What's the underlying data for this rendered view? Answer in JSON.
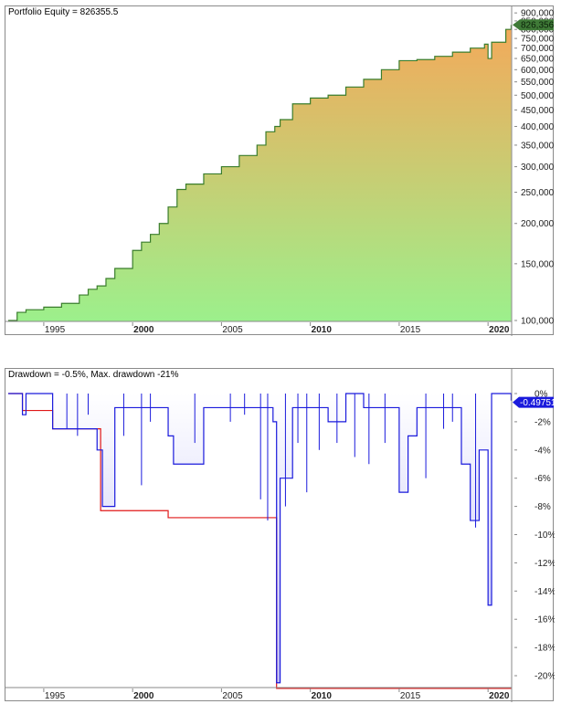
{
  "equity_pane": {
    "title": "Portfolio Equity = 826355.5",
    "current_value_label": "826,356",
    "line_color": "#3a7d2c",
    "fill_top_color": "#f4a95a",
    "fill_bottom_color": "#9cf08c",
    "value_badge_color": "#3f7a37"
  },
  "drawdown_pane": {
    "title": "Drawdown = -0.5%, Max. drawdown -21%",
    "current_value_label": "-0.49751",
    "line_color": "#1a1adc",
    "max_dd_line_color": "#e01818",
    "value_badge_color": "#1a1adc"
  },
  "x_axis": {
    "ticks": [
      {
        "label": "1995",
        "bold": false
      },
      {
        "label": "2000",
        "bold": true
      },
      {
        "label": "2005",
        "bold": false
      },
      {
        "label": "2010",
        "bold": true
      },
      {
        "label": "2015",
        "bold": false
      },
      {
        "label": "2020",
        "bold": true
      }
    ]
  },
  "chart_data": [
    {
      "type": "area",
      "title": "Portfolio Equity = 826355.5",
      "xlabel": "",
      "ylabel": "",
      "yscale": "log",
      "ylim": [
        100000,
        900000
      ],
      "y_ticks": [
        "100,000",
        "150,000",
        "200,000",
        "250,000",
        "300,000",
        "350,000",
        "400,000",
        "450,000",
        "500,000",
        "550,000",
        "600,000",
        "650,000",
        "700,000",
        "750,000",
        "800,000",
        "850,000",
        "900,000"
      ],
      "x_ticks": [
        "1995",
        "2000",
        "2005",
        "2010",
        "2015",
        "2020"
      ],
      "x": [
        1993.0,
        1993.5,
        1994.0,
        1995.0,
        1996.0,
        1997.0,
        1997.5,
        1998.0,
        1998.5,
        1999.0,
        2000.0,
        2000.5,
        2001.0,
        2001.5,
        2002.0,
        2002.5,
        2003.0,
        2004.0,
        2005.0,
        2006.0,
        2007.0,
        2007.5,
        2008.0,
        2008.3,
        2009.0,
        2010.0,
        2011.0,
        2012.0,
        2013.0,
        2014.0,
        2015.0,
        2016.0,
        2017.0,
        2018.0,
        2019.0,
        2019.8,
        2020.0,
        2020.2,
        2021.0,
        2021.3
      ],
      "values": [
        100000,
        106000,
        108000,
        110000,
        113000,
        120000,
        125000,
        128000,
        135000,
        145000,
        165000,
        175000,
        185000,
        200000,
        225000,
        255000,
        265000,
        285000,
        300000,
        325000,
        350000,
        385000,
        400000,
        420000,
        470000,
        490000,
        500000,
        530000,
        560000,
        600000,
        640000,
        645000,
        660000,
        680000,
        700000,
        720000,
        650000,
        730000,
        800000,
        826356
      ],
      "last_value": 826355.5
    },
    {
      "type": "line",
      "title": "Drawdown = -0.5%, Max. drawdown -21%",
      "xlabel": "",
      "ylabel": "",
      "ylim": [
        -21,
        0
      ],
      "y_ticks": [
        "0%",
        "-2%",
        "-4%",
        "-6%",
        "-8%",
        "-10%",
        "-12%",
        "-14%",
        "-16%",
        "-18%",
        "-20%"
      ],
      "x_ticks": [
        "1995",
        "2000",
        "2005",
        "2010",
        "2015",
        "2020"
      ],
      "series": [
        {
          "name": "Drawdown",
          "x": [
            1993.0,
            1993.8,
            1994.0,
            1995.5,
            1998.0,
            1998.3,
            1999.0,
            2002.0,
            2002.3,
            2004.0,
            2007.9,
            2008.1,
            2008.3,
            2009.0,
            2011.0,
            2012.0,
            2013.0,
            2014.5,
            2015.0,
            2015.5,
            2016.0,
            2018.5,
            2019.0,
            2019.5,
            2020.0,
            2020.2,
            2021.0,
            2021.3
          ],
          "values": [
            0,
            -1.5,
            0,
            -2.5,
            -4,
            -8,
            -1,
            -3,
            -5,
            -1,
            -2,
            -20.5,
            -6,
            -1,
            -2,
            0,
            -1,
            -1,
            -7,
            -3,
            -1,
            -5,
            -9,
            -4,
            -15,
            0,
            0,
            -0.5
          ]
        },
        {
          "name": "Max drawdown",
          "x": [
            1993.0,
            1993.8,
            1995.5,
            1998.2,
            2002.0,
            2008.1,
            2021.3
          ],
          "values": [
            0,
            -1.2,
            -2.5,
            -8.3,
            -8.8,
            -20.9,
            -20.9
          ]
        }
      ],
      "last_value": -0.49751,
      "max_drawdown": -21
    }
  ]
}
